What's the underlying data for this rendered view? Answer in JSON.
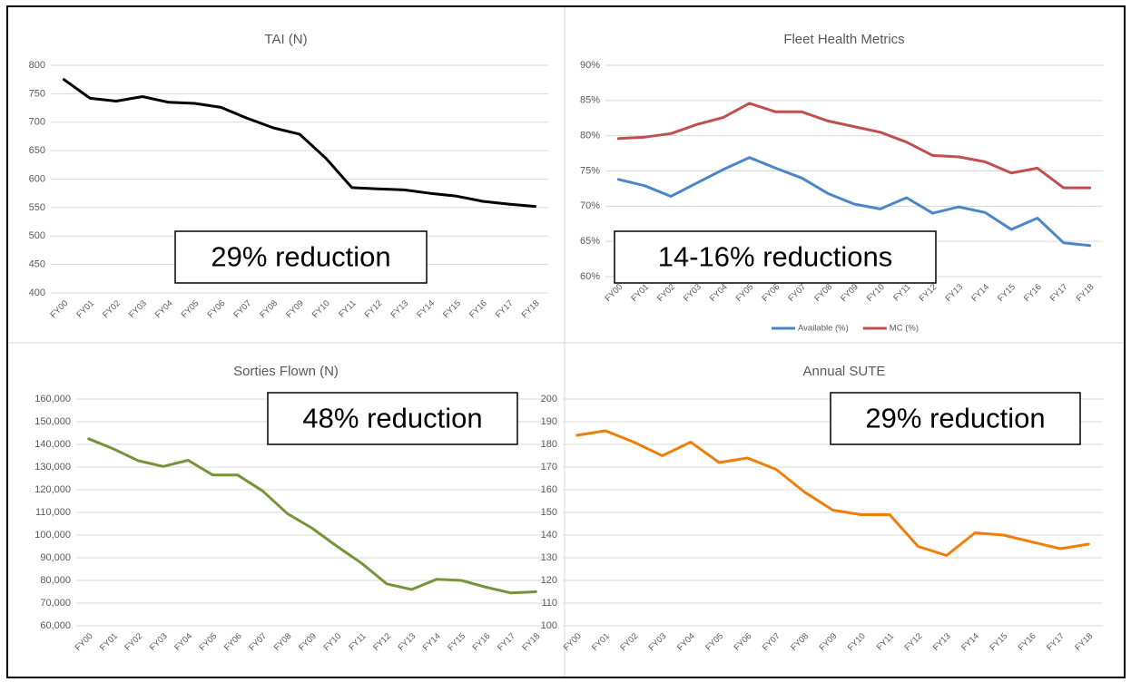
{
  "chart_data": [
    {
      "type": "line",
      "title": "TAI (N)",
      "annotation": "29% reduction",
      "color": "#000000",
      "grid": true,
      "categories": [
        "FY00",
        "FY01",
        "FY02",
        "FY03",
        "FY04",
        "FY05",
        "FY06",
        "FY07",
        "FY08",
        "FY09",
        "FY10",
        "FY11",
        "FY12",
        "FY13",
        "FY14",
        "FY15",
        "FY16",
        "FY17",
        "FY18"
      ],
      "values": [
        775,
        742,
        737,
        745,
        735,
        733,
        726,
        707,
        690,
        679,
        637,
        585,
        583,
        581,
        575,
        570,
        561,
        556,
        552
      ],
      "ylim": [
        400,
        800
      ],
      "yticks": [
        400,
        450,
        500,
        550,
        600,
        650,
        700,
        750,
        800
      ]
    },
    {
      "type": "line",
      "title": "Fleet Health Metrics",
      "annotation": "14-16% reductions",
      "grid": true,
      "legend": "bottom",
      "categories": [
        "FY00",
        "FY01",
        "FY02",
        "FY03",
        "FY04",
        "FY05",
        "FY06",
        "FY07",
        "FY08",
        "FY09",
        "FY10",
        "FY11",
        "FY12",
        "FY13",
        "FY14",
        "FY15",
        "FY16",
        "FY17",
        "FY18"
      ],
      "series": [
        {
          "name": "Available (%)",
          "color": "#4a86c8",
          "values": [
            73.8,
            72.9,
            71.4,
            73.3,
            75.2,
            76.9,
            75.4,
            74.0,
            71.8,
            70.3,
            69.6,
            71.2,
            69.0,
            69.9,
            69.1,
            66.7,
            68.3,
            64.8,
            64.4
          ]
        },
        {
          "name": "MC (%)",
          "color": "#c0504d",
          "values": [
            79.6,
            79.8,
            80.3,
            81.6,
            82.6,
            84.6,
            83.4,
            83.4,
            82.1,
            81.3,
            80.5,
            79.1,
            77.2,
            77.0,
            76.3,
            74.7,
            75.4,
            72.6,
            72.6
          ]
        }
      ],
      "ylim": [
        60,
        90
      ],
      "yticks": [
        {
          "value": 60,
          "label": "60%"
        },
        {
          "value": 65,
          "label": "65%"
        },
        {
          "value": 70,
          "label": "70%"
        },
        {
          "value": 75,
          "label": "75%"
        },
        {
          "value": 80,
          "label": "80%"
        },
        {
          "value": 85,
          "label": "85%"
        },
        {
          "value": 90,
          "label": "90%"
        }
      ]
    },
    {
      "type": "line",
      "title": "Sorties Flown (N)",
      "annotation": "48% reduction",
      "color": "#77933c",
      "grid": true,
      "categories": [
        "FY00",
        "FY01",
        "FY02",
        "FY03",
        "FY04",
        "FY05",
        "FY06",
        "FY07",
        "FY08",
        "FY09",
        "FY10",
        "FY11",
        "FY12",
        "FY13",
        "FY14",
        "FY15",
        "FY16",
        "FY17",
        "FY18"
      ],
      "values": [
        142500,
        138000,
        132800,
        130300,
        133000,
        126500,
        126500,
        119500,
        109500,
        103000,
        95000,
        87500,
        78500,
        76000,
        80500,
        80000,
        77000,
        74500,
        75000
      ],
      "ylim": [
        60000,
        160000
      ],
      "yticks": [
        {
          "value": 60000,
          "label": "60,000"
        },
        {
          "value": 70000,
          "label": "70,000"
        },
        {
          "value": 80000,
          "label": "80,000"
        },
        {
          "value": 90000,
          "label": "90,000"
        },
        {
          "value": 100000,
          "label": "100,000"
        },
        {
          "value": 110000,
          "label": "110,000"
        },
        {
          "value": 120000,
          "label": "120,000"
        },
        {
          "value": 130000,
          "label": "130,000"
        },
        {
          "value": 140000,
          "label": "140,000"
        },
        {
          "value": 150000,
          "label": "150,000"
        },
        {
          "value": 160000,
          "label": "160,000"
        }
      ]
    },
    {
      "type": "line",
      "title": "Annual SUTE",
      "annotation": "29% reduction",
      "color": "#f07f09",
      "grid": true,
      "categories": [
        "FY00",
        "FY01",
        "FY02",
        "FY03",
        "FY04",
        "FY05",
        "FY06",
        "FY07",
        "FY08",
        "FY09",
        "FY10",
        "FY11",
        "FY12",
        "FY13",
        "FY14",
        "FY15",
        "FY16",
        "FY17",
        "FY18"
      ],
      "values": [
        184,
        186,
        181,
        175,
        181,
        172,
        174,
        169,
        159,
        151,
        149,
        149,
        135,
        131,
        141,
        140,
        137,
        134,
        136
      ],
      "ylim": [
        100,
        200
      ],
      "yticks": [
        100,
        110,
        120,
        130,
        140,
        150,
        160,
        170,
        180,
        190,
        200
      ]
    }
  ]
}
